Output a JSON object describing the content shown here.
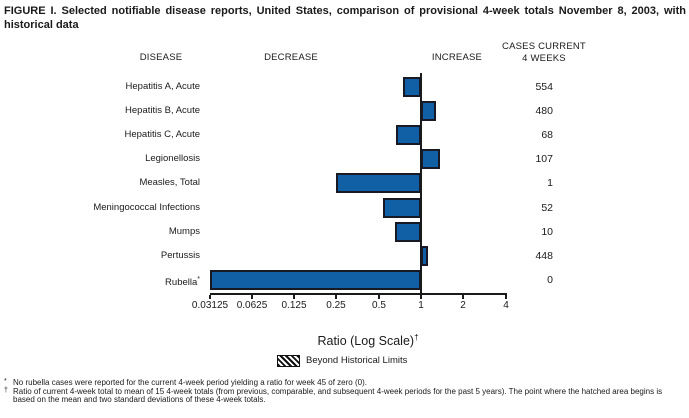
{
  "title": "FIGURE I. Selected notifiable disease reports, United States, comparison of provisional 4-week totals November 8, 2003, with historical data",
  "column_headers": {
    "disease": "DISEASE",
    "decrease": "DECREASE",
    "increase": "INCREASE",
    "cases_line1": "CASES CURRENT",
    "cases_line2": "4 WEEKS"
  },
  "chart_data": {
    "type": "bar",
    "orientation": "horizontal",
    "x_scale": "log2",
    "baseline_ratio": 1,
    "xlabel": "Ratio (Log Scale)",
    "xlabel_superscript": "†",
    "x_ticks": [
      0.03125,
      0.0625,
      0.125,
      0.25,
      0.5,
      1,
      2,
      4
    ],
    "xlim": [
      0.03125,
      4
    ],
    "colors": {
      "bar_fill": "#1160a6",
      "bar_border": "#171a24",
      "axis": "#1a1a1a"
    },
    "legend": {
      "label": "Beyond Historical Limits",
      "swatch": "black-white-diagonal-hatch"
    },
    "rows": [
      {
        "disease": "Hepatitis A, Acute",
        "ratio": 0.75,
        "cases_current_4_weeks": "554"
      },
      {
        "disease": "Hepatitis B, Acute",
        "ratio": 1.27,
        "cases_current_4_weeks": "480"
      },
      {
        "disease": "Hepatitis C, Acute",
        "ratio": 0.66,
        "cases_current_4_weeks": "68"
      },
      {
        "disease": "Legionellosis",
        "ratio": 1.36,
        "cases_current_4_weeks": "107"
      },
      {
        "disease": "Measles, Total",
        "ratio": 0.25,
        "cases_current_4_weeks": "1"
      },
      {
        "disease": "Meningococcal Infections",
        "ratio": 0.54,
        "cases_current_4_weeks": "52"
      },
      {
        "disease": "Mumps",
        "ratio": 0.65,
        "cases_current_4_weeks": "10"
      },
      {
        "disease": "Pertussis",
        "ratio": 1.13,
        "cases_current_4_weeks": "448"
      },
      {
        "disease": "Rubella",
        "label_superscript": "*",
        "ratio": 0,
        "cases_current_4_weeks": "0"
      }
    ]
  },
  "footnotes": [
    {
      "marker": "*",
      "text": "No rubella cases were reported for the current 4-week period yielding a ratio for week 45 of zero (0)."
    },
    {
      "marker": "†",
      "text": "Ratio of current 4-week total to mean of 15 4-week totals (from previous, comparable, and subsequent 4-week periods for the past 5 years). The point where the hatched area begins is based on the mean and two standard deviations of these 4-week totals."
    }
  ]
}
